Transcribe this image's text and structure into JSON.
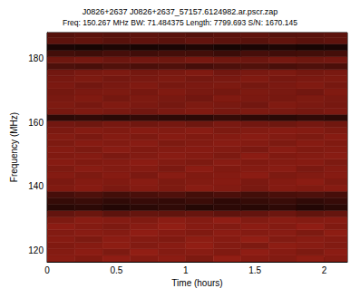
{
  "chart_data": {
    "type": "heatmap",
    "title": "J0826+2637 J0826+2637_57157.6124982.ar.pscr.zap",
    "subtitle": "Freq: 150.267 MHz BW: 71.484375 Length: 7799.693 S/N: 1670.145",
    "x_label": "Time (hours)",
    "y_label": "Frequency (MHz)",
    "xlim": [
      0,
      2.1666
    ],
    "ylim": [
      116.5,
      188
    ],
    "xticks": [
      0,
      0.5,
      1,
      1.5,
      2
    ],
    "yticks": [
      120,
      140,
      160,
      180
    ],
    "zlim": [
      0,
      1
    ],
    "x_bins": [
      0,
      0.2,
      0.4,
      0.6,
      0.8,
      1.0,
      1.2,
      1.4,
      1.6,
      1.8,
      2.0,
      2.1666
    ],
    "y_bins": [
      116.5,
      118.5,
      120.5,
      122.5,
      124.5,
      126.5,
      128.5,
      130.5,
      132.5,
      134.5,
      136.5,
      138.5,
      140.5,
      142.5,
      144.5,
      146.5,
      148.5,
      150.5,
      152.5,
      154.5,
      156.5,
      158.5,
      160.5,
      162.5,
      164.5,
      166.5,
      168.5,
      170.5,
      172.5,
      174.5,
      176.5,
      178.5,
      180.5,
      182.5,
      184.5,
      186.5,
      188
    ],
    "cells": [
      [
        0.62,
        0.58,
        0.65,
        0.6,
        0.63,
        0.57,
        0.66,
        0.61,
        0.59,
        0.64,
        0.6
      ],
      [
        0.6,
        0.63,
        0.57,
        0.66,
        0.6,
        0.62,
        0.58,
        0.65,
        0.61,
        0.57,
        0.63
      ],
      [
        0.58,
        0.61,
        0.64,
        0.59,
        0.62,
        0.66,
        0.6,
        0.57,
        0.64,
        0.62,
        0.59
      ],
      [
        0.61,
        0.57,
        0.63,
        0.6,
        0.58,
        0.64,
        0.61,
        0.66,
        0.59,
        0.62,
        0.6
      ],
      [
        0.59,
        0.62,
        0.6,
        0.65,
        0.61,
        0.58,
        0.63,
        0.6,
        0.62,
        0.57,
        0.64
      ],
      [
        0.63,
        0.6,
        0.57,
        0.62,
        0.66,
        0.61,
        0.59,
        0.63,
        0.6,
        0.65,
        0.58
      ],
      [
        0.57,
        0.62,
        0.6,
        0.58,
        0.63,
        0.6,
        0.65,
        0.59,
        0.62,
        0.6,
        0.61
      ],
      [
        0.45,
        0.48,
        0.42,
        0.46,
        0.44,
        0.47,
        0.43,
        0.45,
        0.49,
        0.44,
        0.46
      ],
      [
        0.18,
        0.2,
        0.16,
        0.19,
        0.22,
        0.17,
        0.2,
        0.18,
        0.21,
        0.16,
        0.19
      ],
      [
        0.24,
        0.26,
        0.22,
        0.25,
        0.23,
        0.27,
        0.21,
        0.24,
        0.26,
        0.22,
        0.25
      ],
      [
        0.32,
        0.35,
        0.3,
        0.33,
        0.36,
        0.31,
        0.34,
        0.3,
        0.33,
        0.35,
        0.32
      ],
      [
        0.58,
        0.61,
        0.56,
        0.6,
        0.57,
        0.62,
        0.59,
        0.55,
        0.6,
        0.58,
        0.61
      ],
      [
        0.56,
        0.6,
        0.58,
        0.62,
        0.57,
        0.59,
        0.61,
        0.56,
        0.6,
        0.63,
        0.57
      ],
      [
        0.6,
        0.57,
        0.61,
        0.56,
        0.62,
        0.58,
        0.6,
        0.63,
        0.57,
        0.59,
        0.61
      ],
      [
        0.57,
        0.62,
        0.59,
        0.6,
        0.56,
        0.63,
        0.58,
        0.6,
        0.62,
        0.56,
        0.6
      ],
      [
        0.61,
        0.58,
        0.6,
        0.63,
        0.59,
        0.57,
        0.62,
        0.58,
        0.6,
        0.61,
        0.57
      ],
      [
        0.58,
        0.6,
        0.56,
        0.59,
        0.62,
        0.6,
        0.57,
        0.63,
        0.58,
        0.6,
        0.62
      ],
      [
        0.6,
        0.57,
        0.62,
        0.58,
        0.6,
        0.61,
        0.59,
        0.56,
        0.62,
        0.58,
        0.6
      ],
      [
        0.57,
        0.61,
        0.59,
        0.62,
        0.57,
        0.59,
        0.62,
        0.6,
        0.57,
        0.61,
        0.58
      ],
      [
        0.59,
        0.56,
        0.6,
        0.57,
        0.61,
        0.58,
        0.6,
        0.62,
        0.59,
        0.57,
        0.61
      ],
      [
        0.56,
        0.6,
        0.58,
        0.61,
        0.59,
        0.62,
        0.57,
        0.59,
        0.61,
        0.6,
        0.57
      ],
      [
        0.52,
        0.5,
        0.54,
        0.51,
        0.53,
        0.5,
        0.55,
        0.52,
        0.5,
        0.53,
        0.51
      ],
      [
        0.2,
        0.22,
        0.19,
        0.23,
        0.21,
        0.2,
        0.24,
        0.21,
        0.19,
        0.22,
        0.2
      ],
      [
        0.54,
        0.57,
        0.55,
        0.52,
        0.56,
        0.58,
        0.54,
        0.57,
        0.55,
        0.53,
        0.56
      ],
      [
        0.57,
        0.54,
        0.58,
        0.56,
        0.53,
        0.57,
        0.55,
        0.52,
        0.58,
        0.56,
        0.54
      ],
      [
        0.55,
        0.58,
        0.53,
        0.57,
        0.55,
        0.52,
        0.58,
        0.56,
        0.54,
        0.57,
        0.55
      ],
      [
        0.53,
        0.56,
        0.57,
        0.54,
        0.58,
        0.55,
        0.53,
        0.57,
        0.55,
        0.52,
        0.58
      ],
      [
        0.56,
        0.52,
        0.55,
        0.58,
        0.54,
        0.56,
        0.57,
        0.53,
        0.56,
        0.58,
        0.54
      ],
      [
        0.54,
        0.57,
        0.53,
        0.55,
        0.57,
        0.53,
        0.55,
        0.58,
        0.54,
        0.56,
        0.57
      ],
      [
        0.52,
        0.55,
        0.57,
        0.53,
        0.55,
        0.58,
        0.52,
        0.55,
        0.57,
        0.53,
        0.55
      ],
      [
        0.35,
        0.33,
        0.37,
        0.34,
        0.36,
        0.32,
        0.35,
        0.37,
        0.33,
        0.36,
        0.34
      ],
      [
        0.5,
        0.53,
        0.49,
        0.52,
        0.5,
        0.54,
        0.51,
        0.49,
        0.53,
        0.5,
        0.52
      ],
      [
        0.3,
        0.28,
        0.32,
        0.29,
        0.31,
        0.3,
        0.27,
        0.32,
        0.29,
        0.3,
        0.31
      ],
      [
        0.12,
        0.1,
        0.13,
        0.11,
        0.12,
        0.14,
        0.1,
        0.12,
        0.13,
        0.11,
        0.12
      ],
      [
        0.42,
        0.44,
        0.4,
        0.43,
        0.41,
        0.45,
        0.42,
        0.4,
        0.44,
        0.41,
        0.43
      ],
      [
        0.38,
        0.41,
        0.39,
        0.42,
        0.4,
        0.38,
        0.41,
        0.43,
        0.39,
        0.4,
        0.42
      ]
    ]
  }
}
